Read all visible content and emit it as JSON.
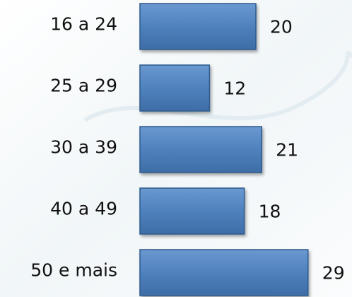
{
  "chart_data": {
    "type": "bar",
    "orientation": "horizontal",
    "categories": [
      "16 a 24",
      "25 a 29",
      "30 a 39",
      "40 a 49",
      "50 e mais"
    ],
    "values": [
      20,
      12,
      21,
      18,
      29
    ],
    "color": "#4f81bd"
  }
}
